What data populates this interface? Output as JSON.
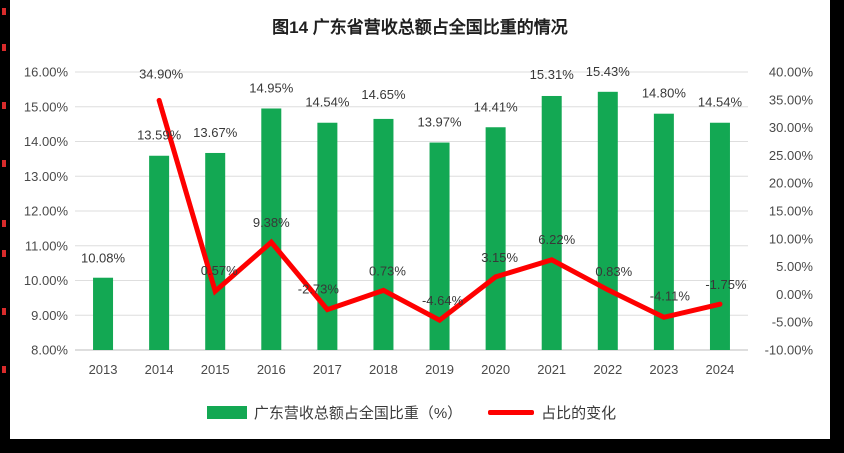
{
  "title": "图14  广东省营收总额占全国比重的情况",
  "chart_data": {
    "type": "combo",
    "title": "图14  广东省营收总额占全国比重的情况",
    "categories": [
      "2013",
      "2014",
      "2015",
      "2016",
      "2017",
      "2018",
      "2019",
      "2020",
      "2021",
      "2022",
      "2023",
      "2024"
    ],
    "series": [
      {
        "name": "广东营收总额占全国比重（%）",
        "type": "bar",
        "axis": "left",
        "color": "#13a853",
        "values": [
          10.08,
          13.59,
          13.67,
          14.95,
          14.54,
          14.65,
          13.97,
          14.41,
          15.31,
          15.43,
          14.8,
          14.54
        ],
        "labels": [
          "10.08%",
          "13.59%",
          "13.67%",
          "14.95%",
          "14.54%",
          "14.65%",
          "13.97%",
          "14.41%",
          "15.31%",
          "15.43%",
          "14.80%",
          "14.54%"
        ]
      },
      {
        "name": "占比的变化",
        "type": "line",
        "axis": "right",
        "color": "#fe0000",
        "values": [
          null,
          34.9,
          0.57,
          9.38,
          -2.73,
          0.73,
          -4.64,
          3.15,
          6.22,
          0.83,
          -4.11,
          -1.75
        ],
        "labels": [
          null,
          "34.90%",
          "0.57%",
          "9.38%",
          "-2.73%",
          "0.73%",
          "-4.64%",
          "3.15%",
          "6.22%",
          "0.83%",
          "-4.11%",
          "-1.75%"
        ]
      }
    ],
    "left_axis": {
      "min": 8,
      "max": 16,
      "step": 1,
      "tick_labels": [
        "16.00%",
        "15.00%",
        "14.00%",
        "13.00%",
        "12.00%",
        "11.00%",
        "10.00%",
        "9.00%",
        "8.00%"
      ]
    },
    "right_axis": {
      "min": -10,
      "max": 40,
      "step": 5,
      "tick_labels": [
        "40.00%",
        "35.00%",
        "30.00%",
        "25.00%",
        "20.00%",
        "15.00%",
        "10.00%",
        "5.00%",
        "0.00%",
        "-5.00%",
        "-10.00%"
      ]
    },
    "grid": true,
    "legend_position": "bottom",
    "colors": {
      "grid": "#dedede",
      "axis_line": "#bdbdbd",
      "tick_text": "#4a4a4a",
      "label_text": "#383838"
    }
  }
}
